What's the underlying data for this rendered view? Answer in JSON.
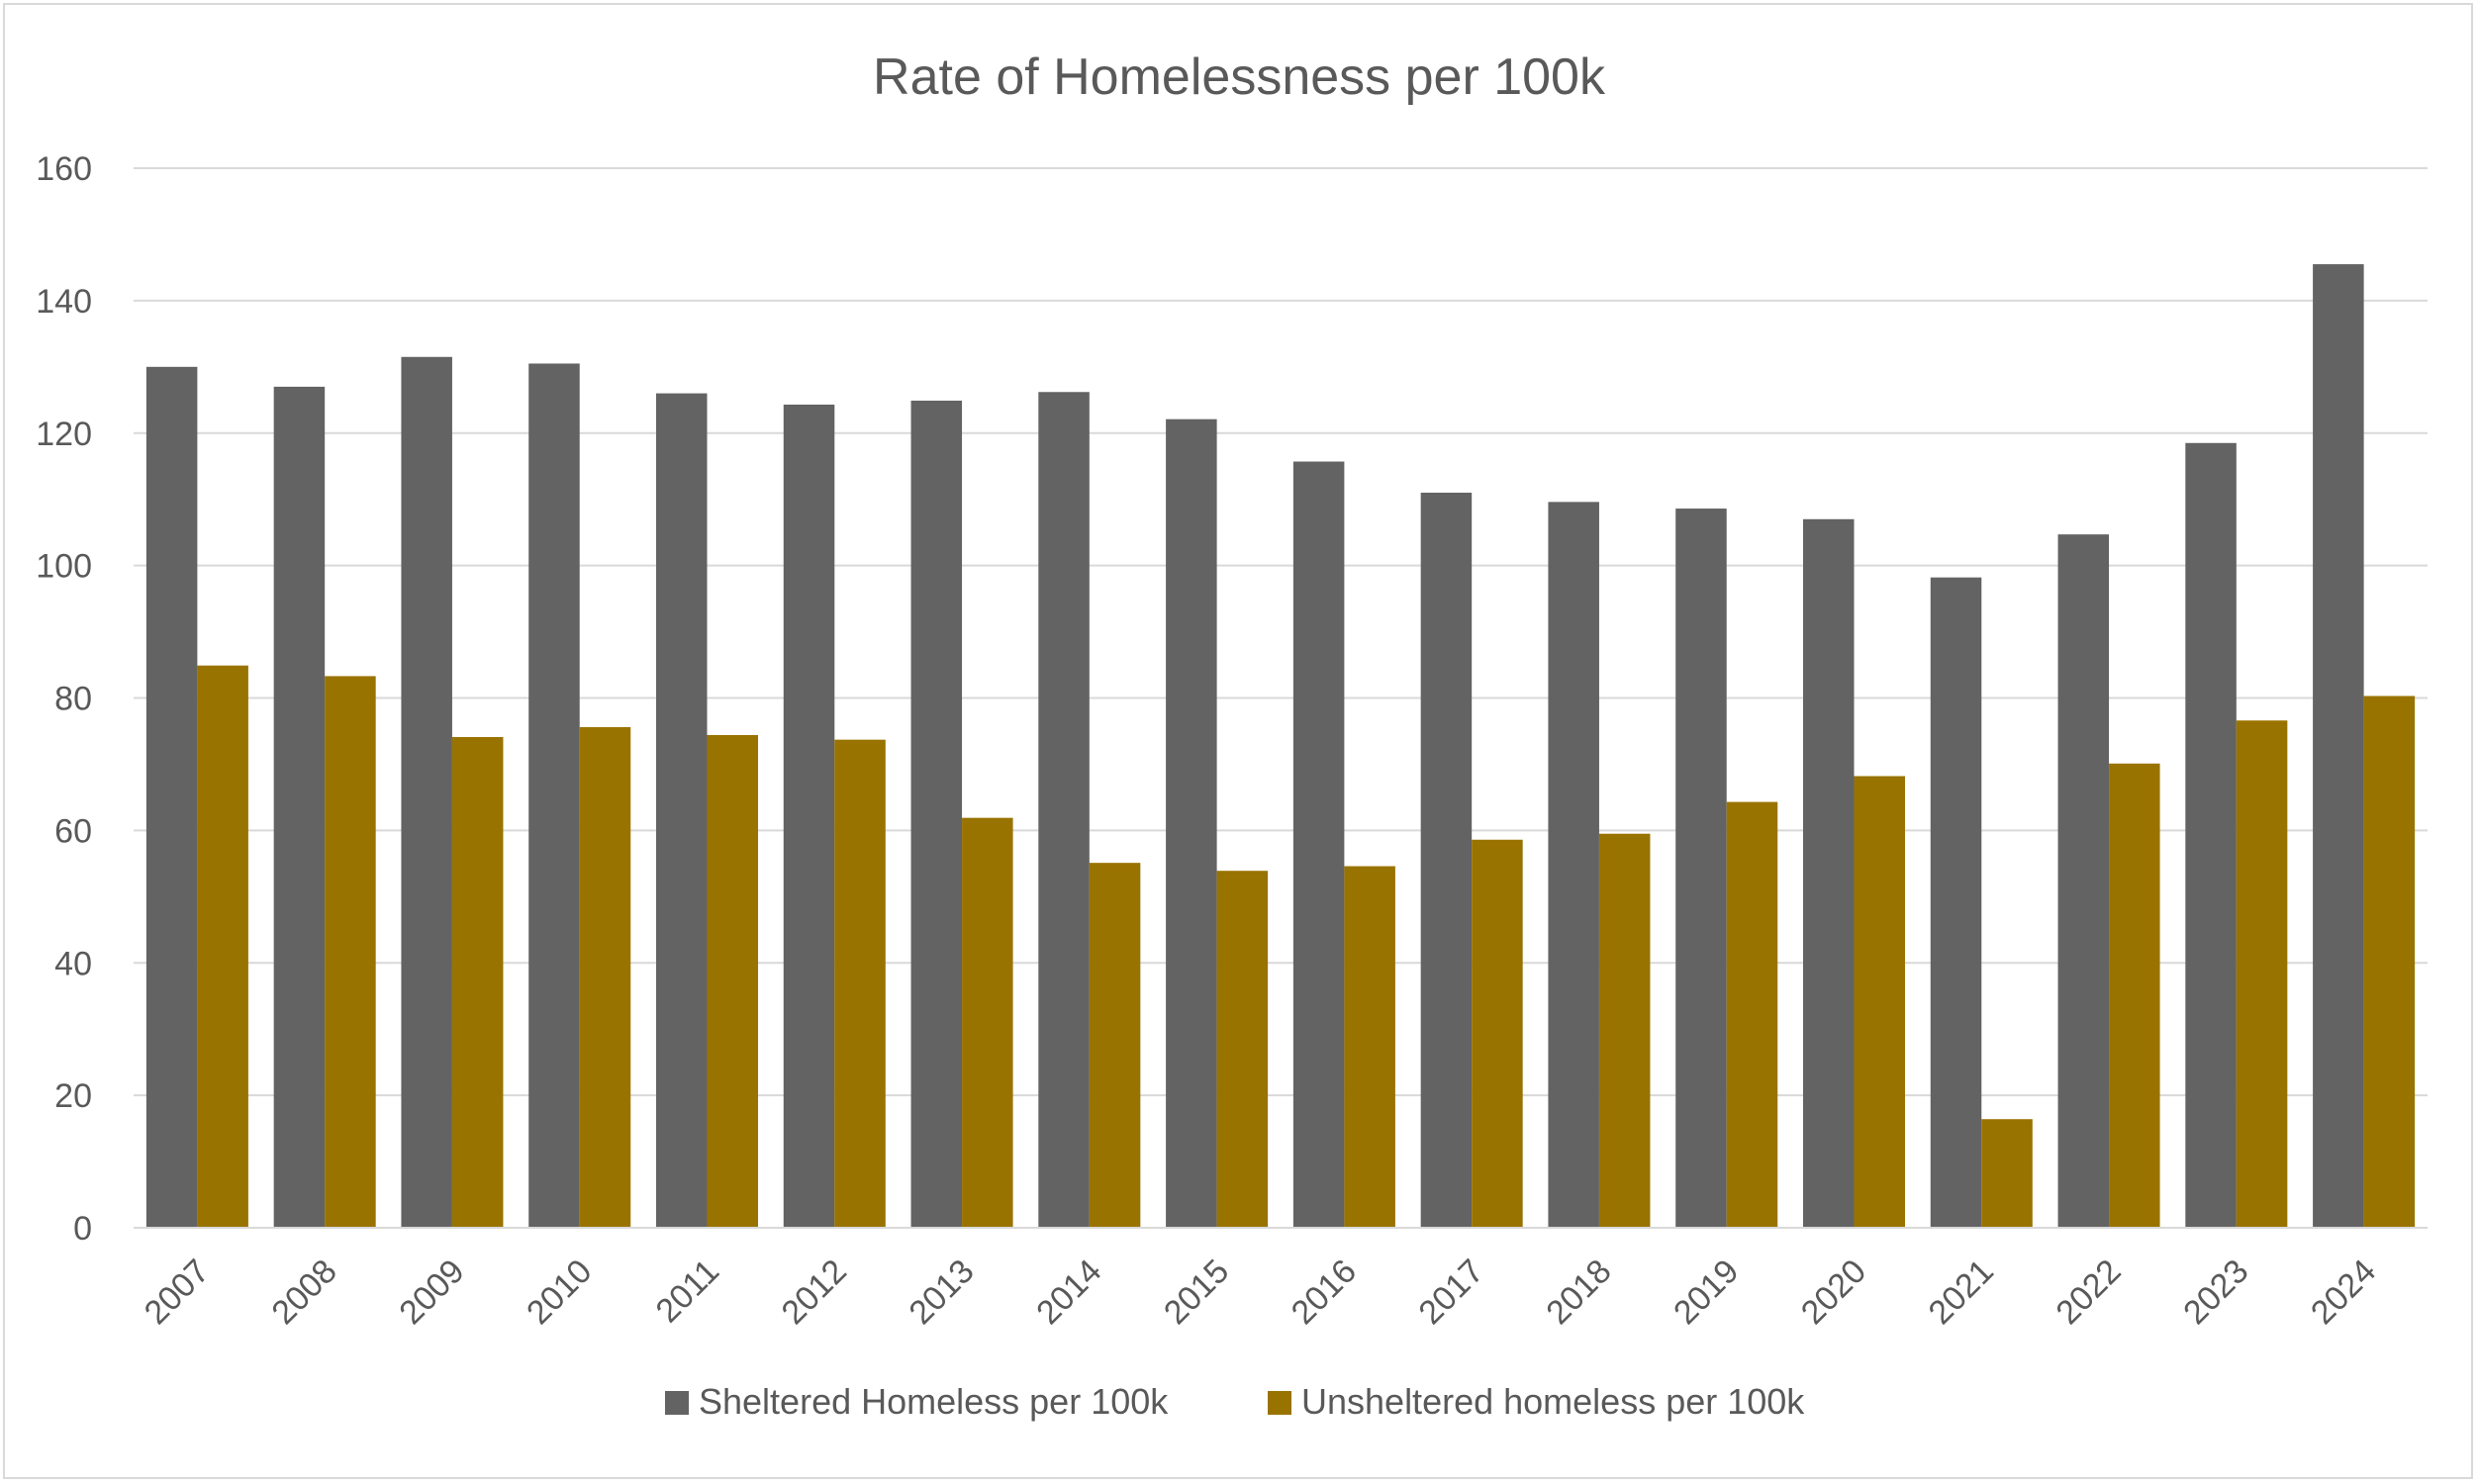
{
  "chart_data": {
    "type": "bar",
    "title": "Rate of Homelessness per 100k",
    "xlabel": "",
    "ylabel": "",
    "ylim": [
      0,
      160
    ],
    "yticks": [
      0,
      20,
      40,
      60,
      80,
      100,
      120,
      140,
      160
    ],
    "grid": true,
    "legend_position": "bottom",
    "categories": [
      "2007",
      "2008",
      "2009",
      "2010",
      "2011",
      "2012",
      "2013",
      "2014",
      "2015",
      "2016",
      "2017",
      "2018",
      "2019",
      "2020",
      "2021",
      "2022",
      "2023",
      "2024"
    ],
    "series": [
      {
        "name": "Sheltered Homeless per 100k",
        "color": "#636363",
        "values": [
          130.0,
          127.0,
          131.5,
          130.5,
          126.0,
          124.3,
          124.9,
          126.2,
          122.1,
          115.7,
          111.0,
          109.6,
          108.6,
          107.0,
          98.2,
          104.7,
          118.5,
          145.5
        ]
      },
      {
        "name": "Unsheltered homeless per 100k",
        "color": "#997300",
        "values": [
          84.9,
          83.3,
          74.1,
          75.6,
          74.4,
          73.7,
          61.9,
          55.1,
          53.9,
          54.6,
          58.6,
          59.5,
          64.3,
          68.2,
          16.4,
          70.1,
          76.6,
          80.3
        ]
      }
    ]
  }
}
